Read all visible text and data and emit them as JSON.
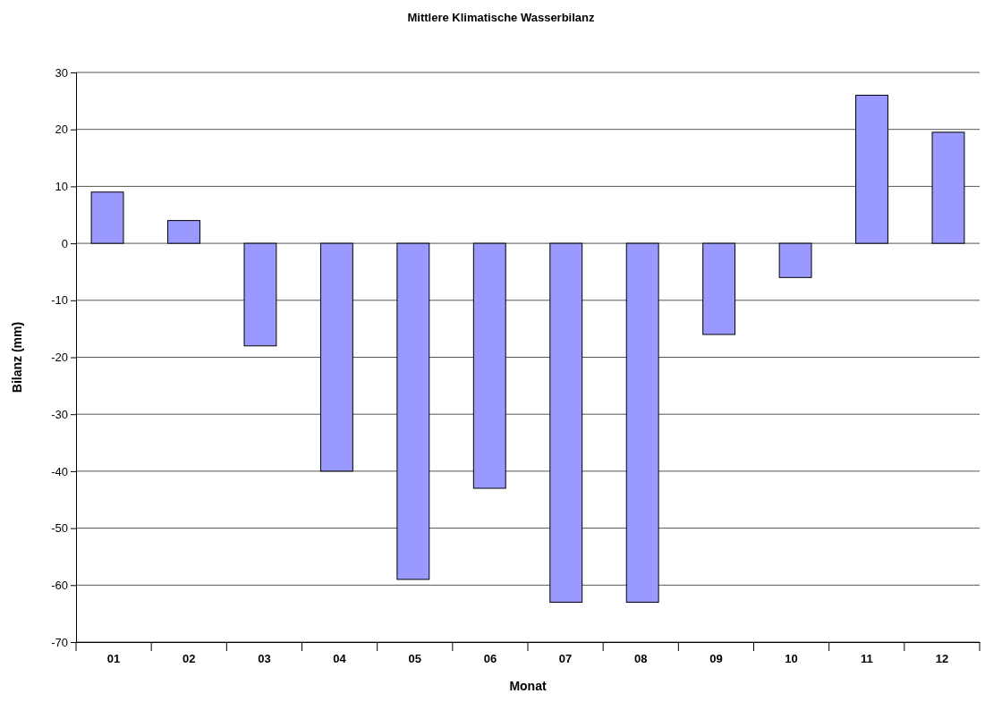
{
  "chart_data": {
    "type": "bar",
    "title": "Mittlere Klimatische Wasserbilanz",
    "xlabel": "Monat",
    "ylabel": "Bilanz (mm)",
    "categories": [
      "01",
      "02",
      "03",
      "04",
      "05",
      "06",
      "07",
      "08",
      "09",
      "10",
      "11",
      "12"
    ],
    "values": [
      9,
      4,
      -18,
      -40,
      -59,
      -43,
      -63,
      -63,
      -16,
      -6,
      26,
      19.5
    ],
    "color": "#9999ff",
    "ylim": [
      -70,
      30
    ],
    "yticks": [
      -70,
      -60,
      -50,
      -40,
      -30,
      -20,
      -10,
      0,
      10,
      20,
      30
    ],
    "grid": "y"
  }
}
